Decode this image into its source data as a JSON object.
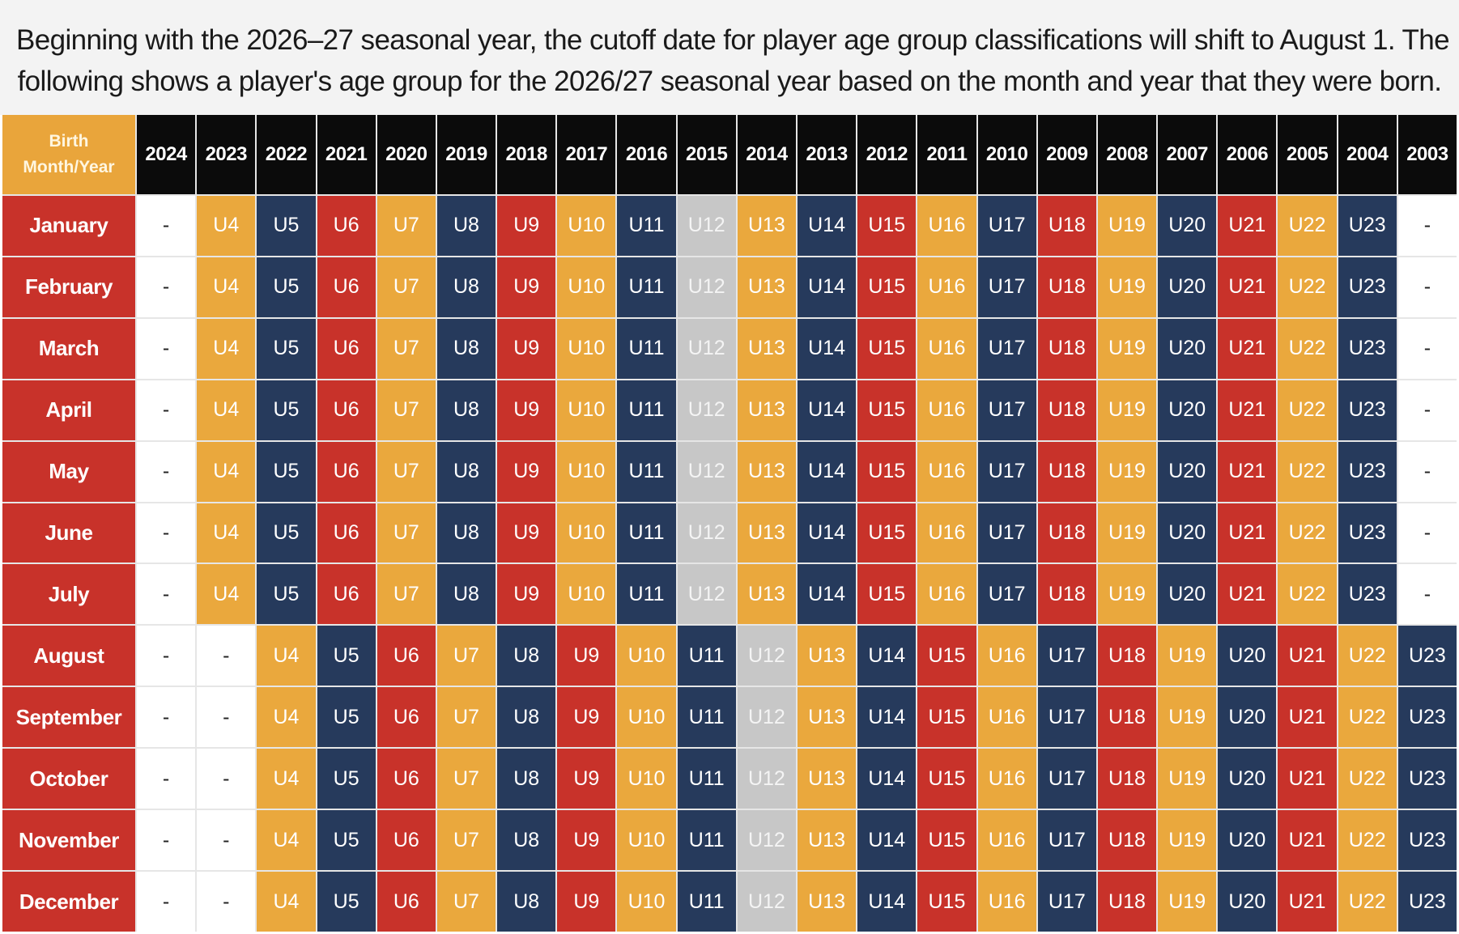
{
  "caption": {
    "line1": "Beginning with the 2026–27 seasonal year, the cutoff date for player age group classifications will shift to August 1. The",
    "line2": "following shows a player's age group for the 2026/27 seasonal year based on the month and year that they were born."
  },
  "table": {
    "corner_label_line1": "Birth",
    "corner_label_line2": "Month/Year",
    "years": [
      "2024",
      "2023",
      "2022",
      "2021",
      "2020",
      "2019",
      "2018",
      "2017",
      "2016",
      "2015",
      "2014",
      "2013",
      "2012",
      "2011",
      "2010",
      "2009",
      "2008",
      "2007",
      "2006",
      "2005",
      "2004",
      "2003"
    ],
    "months": [
      "January",
      "February",
      "March",
      "April",
      "May",
      "June",
      "July",
      "August",
      "September",
      "October",
      "November",
      "December"
    ],
    "rows": [
      [
        "-",
        "U4",
        "U5",
        "U6",
        "U7",
        "U8",
        "U9",
        "U10",
        "U11",
        "U12",
        "U13",
        "U14",
        "U15",
        "U16",
        "U17",
        "U18",
        "U19",
        "U20",
        "U21",
        "U22",
        "U23",
        "-"
      ],
      [
        "-",
        "U4",
        "U5",
        "U6",
        "U7",
        "U8",
        "U9",
        "U10",
        "U11",
        "U12",
        "U13",
        "U14",
        "U15",
        "U16",
        "U17",
        "U18",
        "U19",
        "U20",
        "U21",
        "U22",
        "U23",
        "-"
      ],
      [
        "-",
        "U4",
        "U5",
        "U6",
        "U7",
        "U8",
        "U9",
        "U10",
        "U11",
        "U12",
        "U13",
        "U14",
        "U15",
        "U16",
        "U17",
        "U18",
        "U19",
        "U20",
        "U21",
        "U22",
        "U23",
        "-"
      ],
      [
        "-",
        "U4",
        "U5",
        "U6",
        "U7",
        "U8",
        "U9",
        "U10",
        "U11",
        "U12",
        "U13",
        "U14",
        "U15",
        "U16",
        "U17",
        "U18",
        "U19",
        "U20",
        "U21",
        "U22",
        "U23",
        "-"
      ],
      [
        "-",
        "U4",
        "U5",
        "U6",
        "U7",
        "U8",
        "U9",
        "U10",
        "U11",
        "U12",
        "U13",
        "U14",
        "U15",
        "U16",
        "U17",
        "U18",
        "U19",
        "U20",
        "U21",
        "U22",
        "U23",
        "-"
      ],
      [
        "-",
        "U4",
        "U5",
        "U6",
        "U7",
        "U8",
        "U9",
        "U10",
        "U11",
        "U12",
        "U13",
        "U14",
        "U15",
        "U16",
        "U17",
        "U18",
        "U19",
        "U20",
        "U21",
        "U22",
        "U23",
        "-"
      ],
      [
        "-",
        "U4",
        "U5",
        "U6",
        "U7",
        "U8",
        "U9",
        "U10",
        "U11",
        "U12",
        "U13",
        "U14",
        "U15",
        "U16",
        "U17",
        "U18",
        "U19",
        "U20",
        "U21",
        "U22",
        "U23",
        "-"
      ],
      [
        "-",
        "-",
        "U4",
        "U5",
        "U6",
        "U7",
        "U8",
        "U9",
        "U10",
        "U11",
        "U12",
        "U13",
        "U14",
        "U15",
        "U16",
        "U17",
        "U18",
        "U19",
        "U20",
        "U21",
        "U22",
        "U23"
      ],
      [
        "-",
        "-",
        "U4",
        "U5",
        "U6",
        "U7",
        "U8",
        "U9",
        "U10",
        "U11",
        "U12",
        "U13",
        "U14",
        "U15",
        "U16",
        "U17",
        "U18",
        "U19",
        "U20",
        "U21",
        "U22",
        "U23"
      ],
      [
        "-",
        "-",
        "U4",
        "U5",
        "U6",
        "U7",
        "U8",
        "U9",
        "U10",
        "U11",
        "U12",
        "U13",
        "U14",
        "U15",
        "U16",
        "U17",
        "U18",
        "U19",
        "U20",
        "U21",
        "U22",
        "U23"
      ],
      [
        "-",
        "-",
        "U4",
        "U5",
        "U6",
        "U7",
        "U8",
        "U9",
        "U10",
        "U11",
        "U12",
        "U13",
        "U14",
        "U15",
        "U16",
        "U17",
        "U18",
        "U19",
        "U20",
        "U21",
        "U22",
        "U23"
      ],
      [
        "-",
        "-",
        "U4",
        "U5",
        "U6",
        "U7",
        "U8",
        "U9",
        "U10",
        "U11",
        "U12",
        "U13",
        "U14",
        "U15",
        "U16",
        "U17",
        "U18",
        "U19",
        "U20",
        "U21",
        "U22",
        "U23"
      ]
    ]
  },
  "colors": {
    "U4": "#eaa83d",
    "U7": "#eaa83d",
    "U10": "#eaa83d",
    "U13": "#eaa83d",
    "U16": "#eaa83d",
    "U19": "#eaa83d",
    "U22": "#eaa83d",
    "U5": "#263a5c",
    "U8": "#263a5c",
    "U11": "#263a5c",
    "U14": "#263a5c",
    "U17": "#263a5c",
    "U20": "#263a5c",
    "U23": "#263a5c",
    "U6": "#c8322a",
    "U9": "#c8322a",
    "U15": "#c8322a",
    "U18": "#c8322a",
    "U21": "#c8322a",
    "U12": "#c7c7c7",
    "-": "#ffffff",
    "header": "#0b0b0b",
    "month": "#c8322a",
    "corner": "#e9a53b"
  }
}
